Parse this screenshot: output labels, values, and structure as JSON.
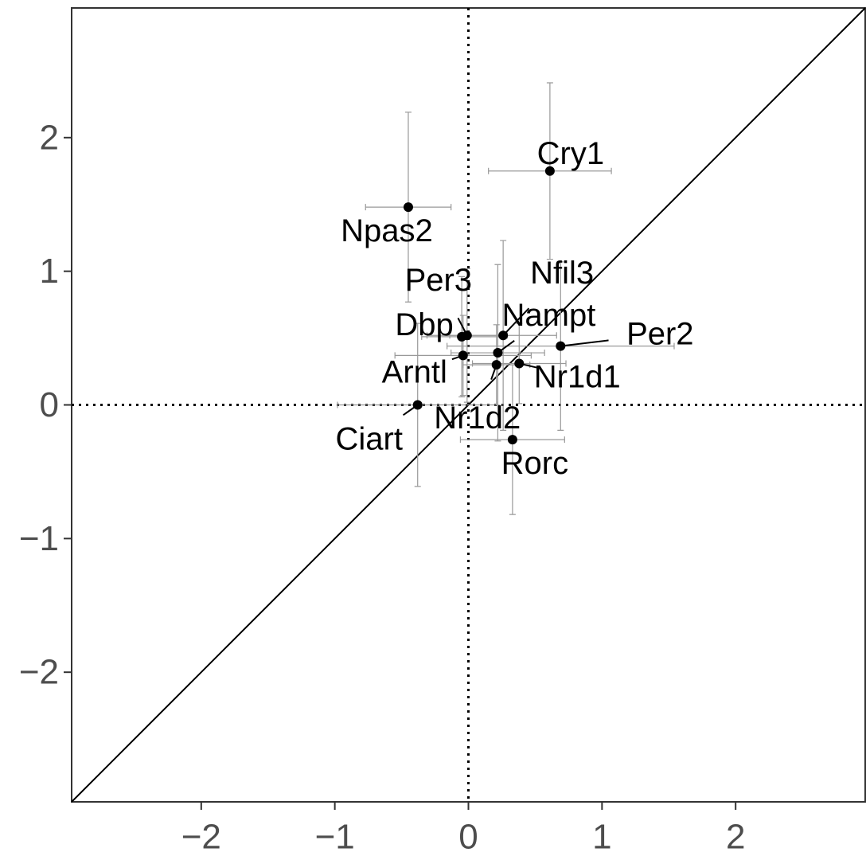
{
  "chart_data": {
    "type": "scatter",
    "labels": [
      "Cry1",
      "Npas2",
      "Per3",
      "Dbp",
      "Nfil3",
      "Nampt",
      "Per2",
      "Arntl",
      "Nr1d2",
      "Nr1d1",
      "Ciart",
      "Rorc"
    ],
    "x": [
      0.61,
      -0.45,
      -0.01,
      -0.05,
      0.26,
      0.22,
      0.69,
      -0.04,
      0.21,
      0.38,
      -0.38,
      0.33
    ],
    "y": [
      1.75,
      1.48,
      0.52,
      0.51,
      0.52,
      0.39,
      0.44,
      0.37,
      0.3,
      0.31,
      0.0,
      -0.26
    ],
    "xerr": [
      0.46,
      0.32,
      0.3,
      0.3,
      0.4,
      0.35,
      0.85,
      0.51,
      0.25,
      0.35,
      0.6,
      0.39
    ],
    "yerr": [
      0.66,
      0.71,
      0.5,
      0.45,
      0.71,
      0.66,
      0.63,
      0.3,
      0.3,
      0.3,
      0.61,
      0.56
    ],
    "color": "#000000",
    "error_color": "#999999",
    "xlim": [
      -2.97,
      2.97
    ],
    "ylim": [
      -2.97,
      2.97
    ],
    "xticks": [
      {
        "value": -2,
        "label": "−2"
      },
      {
        "value": -1,
        "label": "−1"
      },
      0,
      1,
      2
    ],
    "yticks": [
      {
        "value": -2,
        "label": "−2"
      },
      {
        "value": -1,
        "label": "−1"
      },
      0,
      1,
      2
    ],
    "identity_line": true,
    "zero_lines": true
  }
}
